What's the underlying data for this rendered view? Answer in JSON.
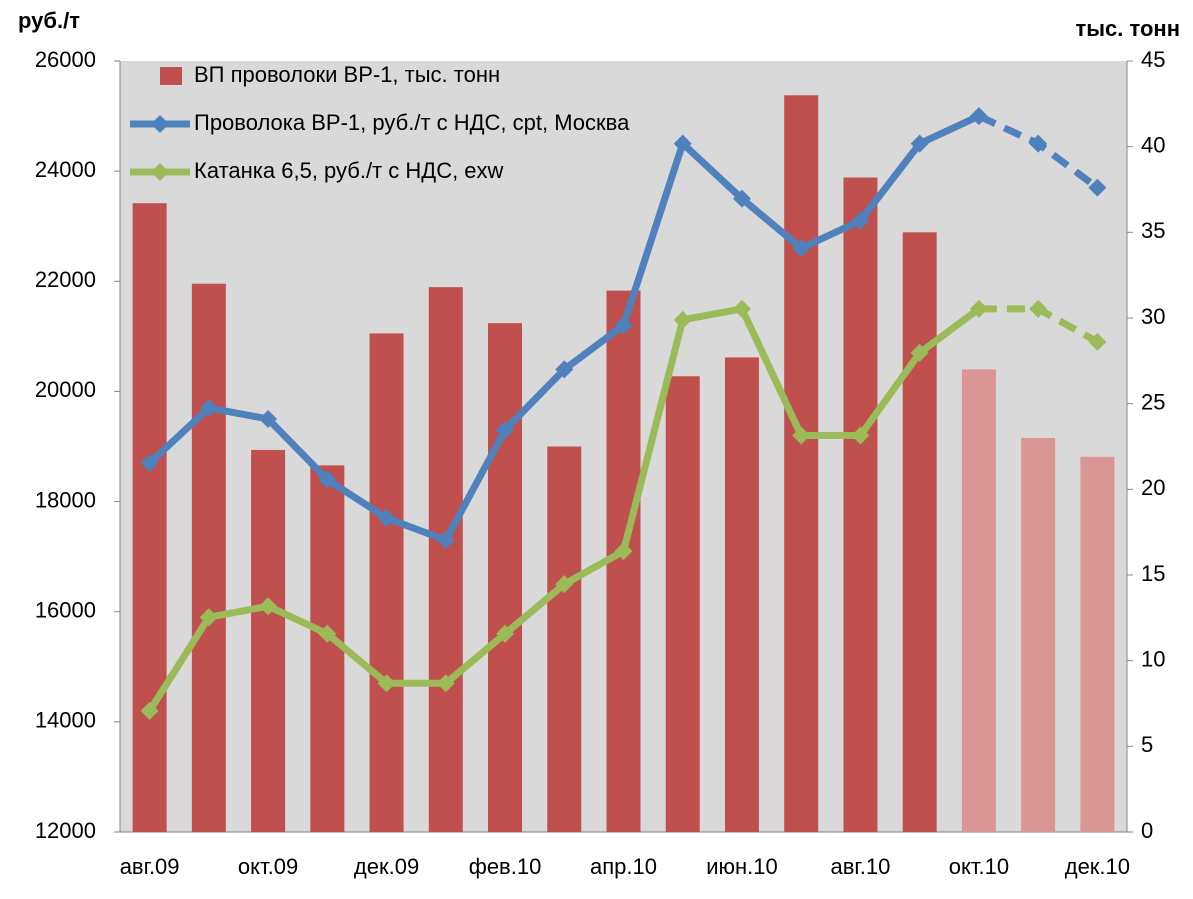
{
  "chart_data": {
    "type": "bar_line",
    "y_title": "руб./т",
    "y2_title": "тыс. тонн",
    "categories": [
      "авг.09",
      null,
      "окт.09",
      null,
      "дек.09",
      null,
      "фев.10",
      null,
      "апр.10",
      null,
      "июн.10",
      null,
      "авг.10",
      null,
      "окт.10",
      null,
      "дек.10"
    ],
    "ylim": [
      12000,
      26000
    ],
    "yticks": [
      12000,
      14000,
      16000,
      18000,
      20000,
      22000,
      24000,
      26000
    ],
    "y2lim": [
      0,
      45
    ],
    "y2ticks": [
      0,
      5,
      10,
      15,
      20,
      25,
      30,
      35,
      40,
      45
    ],
    "dashed_from": 14,
    "legend": "top-left",
    "series": [
      {
        "name": "ВП проволоки ВР-1, тыс. тонн",
        "type": "bar",
        "axis": "y2",
        "color": "#c0504d",
        "colors": [
          "#c0504d",
          "#c0504d",
          "#c0504d",
          "#c0504d",
          "#c0504d",
          "#c0504d",
          "#c0504d",
          "#c0504d",
          "#c0504d",
          "#c0504d",
          "#c0504d",
          "#c0504d",
          "#c0504d",
          "#c0504d",
          "#d99694",
          "#d99694",
          "#d99694"
        ],
        "values": [
          36.7,
          32.0,
          22.3,
          21.4,
          29.1,
          31.8,
          29.7,
          22.5,
          31.6,
          26.6,
          27.7,
          43.0,
          38.2,
          35.0,
          27.0,
          23.0,
          21.9
        ]
      },
      {
        "name": "Проволока ВР-1, руб./т с НДС, cpt, Москва",
        "type": "line",
        "axis": "y",
        "color": "#4f81bd",
        "values": [
          18700,
          19700,
          19500,
          18400,
          17700,
          17300,
          19300,
          20400,
          21200,
          24500,
          23500,
          22600,
          23100,
          24500,
          25000,
          24500,
          23700
        ]
      },
      {
        "name": "Катанка 6,5, руб./т с НДС, exw",
        "type": "line",
        "axis": "y",
        "color": "#9bbb59",
        "values": [
          14200,
          15900,
          16100,
          15600,
          14700,
          14700,
          15600,
          16500,
          17100,
          21300,
          21500,
          19200,
          19200,
          20700,
          21500,
          21500,
          20900
        ]
      }
    ]
  }
}
